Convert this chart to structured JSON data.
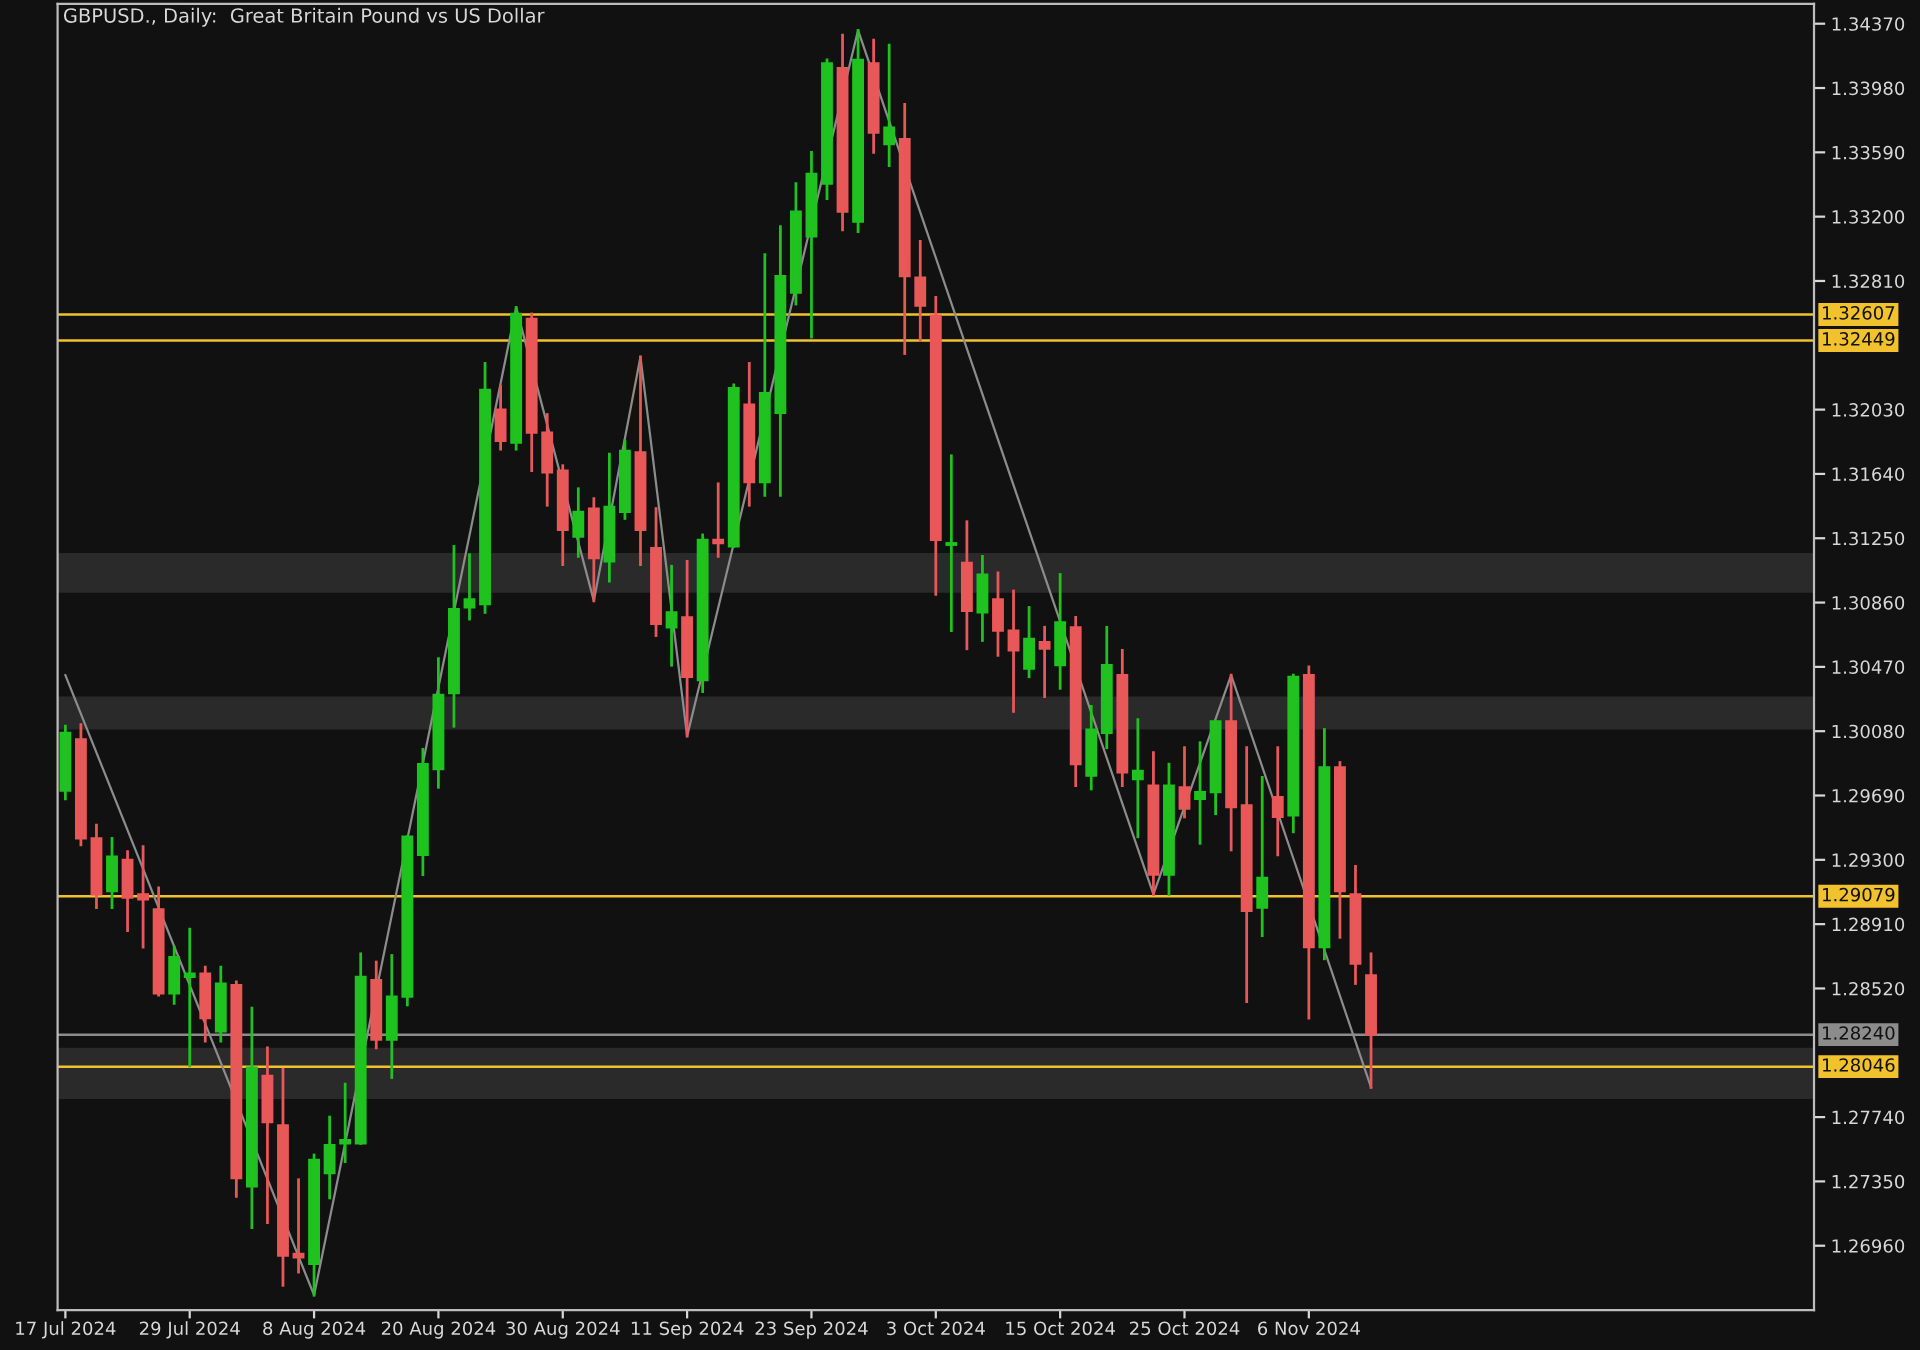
{
  "chart_data": {
    "type": "candlestick",
    "title": "GBPUSD., Daily:  Great Britain Pound vs US Dollar",
    "categories": [
      "17 Jul 2024",
      null,
      null,
      null,
      null,
      null,
      null,
      null,
      "29 Jul 2024",
      null,
      null,
      null,
      null,
      null,
      null,
      null,
      "8 Aug 2024",
      null,
      null,
      null,
      null,
      null,
      null,
      null,
      "20 Aug 2024",
      null,
      null,
      null,
      null,
      null,
      null,
      null,
      "30 Aug 2024",
      null,
      null,
      null,
      null,
      null,
      null,
      null,
      "11 Sep 2024",
      null,
      null,
      null,
      null,
      null,
      null,
      null,
      "23 Sep 2024",
      null,
      null,
      null,
      null,
      null,
      null,
      null,
      "3 Oct 2024",
      null,
      null,
      null,
      null,
      null,
      null,
      null,
      "15 Oct 2024",
      null,
      null,
      null,
      null,
      null,
      null,
      null,
      "25 Oct 2024",
      null,
      null,
      null,
      null,
      null,
      null,
      null,
      "6 Nov 2024",
      null,
      null,
      null,
      null,
      null,
      null,
      null,
      null,
      null,
      null,
      null,
      null,
      null,
      null,
      null,
      null,
      null,
      null,
      null,
      null,
      null,
      null,
      null,
      null,
      null,
      null,
      null,
      null,
      null,
      null,
      null,
      null
    ],
    "ohlc": [
      [
        1.2972,
        1.3011,
        1.2967,
        1.3007
      ],
      [
        1.3003,
        1.3012,
        1.2939,
        1.2943
      ],
      [
        1.2943,
        1.2951,
        1.2901,
        1.2909
      ],
      [
        1.2911,
        1.2943,
        1.2901,
        1.2932
      ],
      [
        1.293,
        1.2935,
        1.2887,
        1.2907
      ],
      [
        1.2909,
        1.2938,
        1.2877,
        1.2906
      ],
      [
        1.29,
        1.2913,
        1.2848,
        1.2849
      ],
      [
        1.2849,
        1.2877,
        1.2843,
        1.2871
      ],
      [
        1.2859,
        1.2888,
        1.2805,
        1.2861
      ],
      [
        1.2861,
        1.2865,
        1.282,
        1.2834
      ],
      [
        1.2826,
        1.2865,
        1.282,
        1.2855
      ],
      [
        1.2854,
        1.2856,
        1.2726,
        1.2737
      ],
      [
        1.2732,
        1.284,
        1.2707,
        1.2804
      ],
      [
        1.2799,
        1.2816,
        1.271,
        1.2771
      ],
      [
        1.2769,
        1.2803,
        1.2672,
        1.269
      ],
      [
        1.2691,
        1.2736,
        1.268,
        1.2689
      ],
      [
        1.2685,
        1.2751,
        1.2666,
        1.2748
      ],
      [
        1.274,
        1.2774,
        1.2725,
        1.2757
      ],
      [
        1.2758,
        1.2794,
        1.2747,
        1.276
      ],
      [
        1.2758,
        1.2873,
        1.2758,
        1.2859
      ],
      [
        1.2857,
        1.2868,
        1.2816,
        1.2821
      ],
      [
        1.2821,
        1.2872,
        1.2798,
        1.2847
      ],
      [
        1.2847,
        1.2944,
        1.2842,
        1.2944
      ],
      [
        1.2933,
        1.2997,
        1.2921,
        1.2988
      ],
      [
        1.2985,
        1.3052,
        1.2974,
        1.303
      ],
      [
        1.3031,
        1.312,
        1.3011,
        1.3082
      ],
      [
        1.3083,
        1.3115,
        1.3076,
        1.3088
      ],
      [
        1.3085,
        1.3231,
        1.308,
        1.3215
      ],
      [
        1.3203,
        1.3217,
        1.3179,
        1.3184
      ],
      [
        1.3183,
        1.3265,
        1.3179,
        1.3261
      ],
      [
        1.3258,
        1.3261,
        1.3166,
        1.3189
      ],
      [
        1.3189,
        1.32,
        1.3145,
        1.3165
      ],
      [
        1.3166,
        1.3169,
        1.3109,
        1.313
      ],
      [
        1.3126,
        1.3155,
        1.3114,
        1.3141
      ],
      [
        1.3143,
        1.3149,
        1.3087,
        1.3113
      ],
      [
        1.3111,
        1.3176,
        1.3099,
        1.3144
      ],
      [
        1.3141,
        1.3184,
        1.3137,
        1.3178
      ],
      [
        1.3177,
        1.3235,
        1.3109,
        1.313
      ],
      [
        1.3119,
        1.3143,
        1.3066,
        1.3073
      ],
      [
        1.3071,
        1.3108,
        1.3048,
        1.308
      ],
      [
        1.3077,
        1.3111,
        1.3005,
        1.3041
      ],
      [
        1.3039,
        1.3127,
        1.3032,
        1.3124
      ],
      [
        1.3124,
        1.3158,
        1.3114,
        1.3122
      ],
      [
        1.312,
        1.3218,
        1.312,
        1.3216
      ],
      [
        1.3206,
        1.3231,
        1.3145,
        1.3159
      ],
      [
        1.3159,
        1.3297,
        1.3151,
        1.3213
      ],
      [
        1.3201,
        1.3314,
        1.3151,
        1.3284
      ],
      [
        1.3274,
        1.334,
        1.3267,
        1.3323
      ],
      [
        1.3308,
        1.3359,
        1.3247,
        1.3346
      ],
      [
        1.334,
        1.3415,
        1.3331,
        1.3413
      ],
      [
        1.341,
        1.343,
        1.3312,
        1.3323
      ],
      [
        1.3317,
        1.3433,
        1.3311,
        1.3415
      ],
      [
        1.3413,
        1.3427,
        1.3359,
        1.3371
      ],
      [
        1.3364,
        1.3424,
        1.3351,
        1.3374
      ],
      [
        1.3367,
        1.3388,
        1.3237,
        1.3284
      ],
      [
        1.3283,
        1.3305,
        1.3245,
        1.3266
      ],
      [
        1.326,
        1.3271,
        1.3091,
        1.3124
      ],
      [
        1.3121,
        1.3175,
        1.3069,
        1.3122
      ],
      [
        1.311,
        1.3135,
        1.3058,
        1.3081
      ],
      [
        1.308,
        1.3114,
        1.3063,
        1.3103
      ],
      [
        1.3088,
        1.3104,
        1.3054,
        1.3069
      ],
      [
        1.3069,
        1.3093,
        1.302,
        1.3057
      ],
      [
        1.3046,
        1.3083,
        1.3041,
        1.3064
      ],
      [
        1.3062,
        1.3071,
        1.3029,
        1.3058
      ],
      [
        1.3048,
        1.3103,
        1.3034,
        1.3074
      ],
      [
        1.3071,
        1.3077,
        1.2975,
        1.2988
      ],
      [
        1.2981,
        1.3023,
        1.2973,
        1.3009
      ],
      [
        1.3007,
        1.3071,
        1.2998,
        1.3048
      ],
      [
        1.3042,
        1.3057,
        1.2975,
        1.2983
      ],
      [
        1.2979,
        1.3015,
        1.2944,
        1.2984
      ],
      [
        1.2975,
        1.2995,
        1.2909,
        1.2921
      ],
      [
        1.2921,
        1.2988,
        1.2909,
        1.2975
      ],
      [
        1.2974,
        1.2998,
        1.2956,
        1.2961
      ],
      [
        1.2967,
        1.3001,
        1.294,
        1.2971
      ],
      [
        1.2971,
        1.3014,
        1.2958,
        1.3014
      ],
      [
        1.3014,
        1.3042,
        1.2936,
        1.2962
      ],
      [
        1.2963,
        1.2998,
        1.2844,
        1.2899
      ],
      [
        1.2901,
        1.298,
        1.2884,
        1.2919
      ],
      [
        1.2968,
        1.2998,
        1.2933,
        1.2956
      ],
      [
        1.2957,
        1.3042,
        1.2947,
        1.3041
      ],
      [
        1.3042,
        1.3047,
        1.2834,
        1.2877
      ],
      [
        1.2877,
        1.3009,
        1.287,
        1.2986
      ],
      [
        1.2986,
        1.2989,
        1.2883,
        1.2911
      ],
      [
        1.2909,
        1.2926,
        1.2855,
        1.2867
      ],
      [
        1.286,
        1.2873,
        1.2792,
        1.2824
      ],
      null,
      null,
      null,
      null,
      null,
      null,
      null,
      null,
      null,
      null,
      null,
      null,
      null,
      null,
      null,
      null,
      null,
      null,
      null,
      null,
      null,
      null,
      null,
      null,
      null,
      null,
      null,
      null
    ],
    "colors": [
      "#1fc21f",
      "#e85858",
      "#e85858",
      "#1fc21f",
      "#e85858",
      "#e85858",
      "#e85858",
      "#1fc21f",
      "#1fc21f",
      "#e85858",
      "#1fc21f",
      "#e85858",
      "#1fc21f",
      "#e85858",
      "#e85858",
      "#e85858",
      "#1fc21f",
      "#1fc21f",
      "#1fc21f",
      "#1fc21f",
      "#e85858",
      "#1fc21f",
      "#1fc21f",
      "#1fc21f",
      "#1fc21f",
      "#1fc21f",
      "#1fc21f",
      "#1fc21f",
      "#e85858",
      "#1fc21f",
      "#e85858",
      "#e85858",
      "#e85858",
      "#1fc21f",
      "#e85858",
      "#1fc21f",
      "#1fc21f",
      "#e85858",
      "#e85858",
      "#1fc21f",
      "#e85858",
      "#1fc21f",
      "#e85858",
      "#1fc21f",
      "#e85858",
      "#1fc21f",
      "#1fc21f",
      "#1fc21f",
      "#1fc21f",
      "#1fc21f",
      "#e85858",
      "#1fc21f",
      "#e85858",
      "#1fc21f",
      "#e85858",
      "#e85858",
      "#e85858",
      "#1fc21f",
      "#e85858",
      "#1fc21f",
      "#e85858",
      "#e85858",
      "#1fc21f",
      "#e85858",
      "#1fc21f",
      "#e85858",
      "#1fc21f",
      "#1fc21f",
      "#e85858",
      "#1fc21f",
      "#e85858",
      "#1fc21f",
      "#e85858",
      "#1fc21f",
      "#1fc21f",
      "#e85858",
      "#e85858",
      "#1fc21f",
      "#e85858",
      "#1fc21f",
      "#e85858",
      "#1fc21f",
      "#e85858",
      "#e85858",
      "#e85858",
      null,
      null,
      null,
      null,
      null,
      null,
      null,
      null,
      null,
      null,
      null,
      null,
      null,
      null,
      null,
      null,
      null,
      null,
      null,
      null,
      null,
      null,
      null,
      null,
      null,
      null,
      null,
      null
    ],
    "series": [
      {
        "type": "line",
        "color": "#8c8c8c",
        "values": [
          1.3042,
          null,
          null,
          null,
          null,
          null,
          null,
          null,
          null,
          null,
          null,
          null,
          null,
          null,
          null,
          null,
          1.2666,
          null,
          null,
          null,
          null,
          null,
          null,
          null,
          null,
          null,
          null,
          null,
          null,
          1.3265,
          null,
          null,
          null,
          null,
          1.3087,
          null,
          null,
          1.3235,
          null,
          null,
          1.3005,
          null,
          null,
          null,
          null,
          null,
          null,
          null,
          null,
          null,
          null,
          1.3433,
          null,
          null,
          null,
          null,
          null,
          null,
          null,
          null,
          null,
          null,
          null,
          null,
          null,
          null,
          null,
          null,
          null,
          null,
          1.2909,
          null,
          null,
          null,
          null,
          1.3042,
          null,
          null,
          null,
          null,
          null,
          null,
          null,
          null,
          1.2792,
          null,
          null,
          null,
          null,
          null,
          null,
          null,
          null,
          null,
          null,
          null,
          null,
          null,
          null,
          null,
          null,
          null,
          null,
          null,
          null,
          null,
          null,
          null,
          null,
          null,
          null,
          null,
          null
        ]
      }
    ],
    "ref_lines": [
      {
        "axis": "y",
        "value": 1.32607,
        "label": "1.32607",
        "color": "#f2c12e"
      },
      {
        "axis": "y",
        "value": 1.32449,
        "label": "1.32449",
        "color": "#f2c12e"
      },
      {
        "axis": "y",
        "value": 1.29079,
        "label": "1.29079",
        "color": "#f2c12e"
      },
      {
        "axis": "y",
        "value": 1.2824,
        "label": "1.28240",
        "color": "#8c8c8c"
      },
      {
        "axis": "y",
        "value": 1.28046,
        "label": "1.28046",
        "color": "#f2c12e"
      }
    ],
    "bands": [
      {
        "axis": "y",
        "from": 1.3092,
        "to": 1.3116,
        "color": "#2a2a2a"
      },
      {
        "axis": "y",
        "from": 1.3009,
        "to": 1.3029,
        "color": "#2a2a2a"
      },
      {
        "axis": "y",
        "from": 1.2785,
        "to": 1.2816,
        "color": "#2a2a2a"
      }
    ],
    "ylim": [
      1.2657,
      1.3449
    ],
    "yticks": [
      {
        "value": 1.3437,
        "label": "1.34370"
      },
      {
        "value": 1.3398,
        "label": "1.33980"
      },
      {
        "value": 1.3359,
        "label": "1.33590"
      },
      {
        "value": 1.332,
        "label": "1.33200"
      },
      {
        "value": 1.3281,
        "label": "1.32810"
      },
      {
        "value": 1.3203,
        "label": "1.32030"
      },
      {
        "value": 1.3164,
        "label": "1.31640"
      },
      {
        "value": 1.3125,
        "label": "1.31250"
      },
      {
        "value": 1.3086,
        "label": "1.30860"
      },
      {
        "value": 1.3047,
        "label": "1.30470"
      },
      {
        "value": 1.3008,
        "label": "1.30080"
      },
      {
        "value": 1.2969,
        "label": "1.29690"
      },
      {
        "value": 1.293,
        "label": "1.29300"
      },
      {
        "value": 1.2891,
        "label": "1.28910"
      },
      {
        "value": 1.2852,
        "label": "1.28520"
      },
      {
        "value": 1.2774,
        "label": "1.27740"
      },
      {
        "value": 1.2735,
        "label": "1.27350"
      },
      {
        "value": 1.2696,
        "label": "1.26960"
      }
    ],
    "grid": false,
    "legend": false
  }
}
